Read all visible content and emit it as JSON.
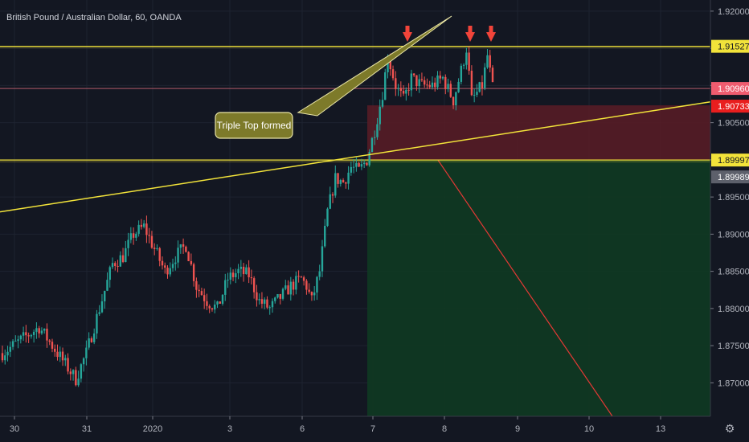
{
  "header": {
    "title": "British Pound / Australian Dollar, 60, OANDA"
  },
  "annotation": {
    "text": "Triple Top formed"
  },
  "chart_data": {
    "type": "candlestick",
    "title": "British Pound / Australian Dollar, 60, OANDA",
    "xlabel": "",
    "ylabel": "",
    "ylim": [
      1.8655,
      1.9215
    ],
    "y_ticks": [
      "1.92000",
      "1.91500",
      "1.91000",
      "1.90500",
      "1.90000",
      "1.89500",
      "1.89000",
      "1.88500",
      "1.88000",
      "1.87500",
      "1.87000"
    ],
    "x_ticks": [
      "30",
      "31",
      "2020",
      "3",
      "6",
      "7",
      "8",
      "9",
      "10",
      "13"
    ],
    "price_labels": [
      {
        "value": "1.91527",
        "style": "yellow"
      },
      {
        "value": "1.90960",
        "style": "pink"
      },
      {
        "value": "22:48",
        "style": "dark"
      },
      {
        "value": "1.90733",
        "style": "red"
      },
      {
        "value": "1.89997",
        "style": "yellow"
      },
      {
        "value": "1.89989",
        "style": "gray"
      }
    ],
    "horizontal_levels": [
      {
        "name": "resistance",
        "value": 1.91527,
        "color": "#f2e33a"
      },
      {
        "name": "neckline",
        "value": 1.89997,
        "color": "#f2e33a"
      },
      {
        "name": "last-price",
        "value": 1.9096,
        "color": "#d96a7a"
      }
    ],
    "trendline": {
      "color": "#f2e33a",
      "from": 1.893,
      "to": 1.9078
    },
    "short_position": {
      "entry": 1.89997,
      "stop": 1.90733,
      "target_below": 1.8655
    },
    "top_markers": 3,
    "colors": {
      "up": "#26a69a",
      "down": "#ef5350",
      "background": "#131722",
      "grid": "#1e2330"
    },
    "candle_path": [
      [
        0,
        1.874
      ],
      [
        8,
        1.876
      ],
      [
        14,
        1.8775
      ],
      [
        20,
        1.8745
      ],
      [
        24,
        1.8725
      ],
      [
        28,
        1.8705
      ],
      [
        32,
        1.874
      ],
      [
        37,
        1.88
      ],
      [
        42,
        1.886
      ],
      [
        46,
        1.887
      ],
      [
        50,
        1.89
      ],
      [
        54,
        1.891
      ],
      [
        58,
        1.888
      ],
      [
        62,
        1.885
      ],
      [
        66,
        1.887
      ],
      [
        70,
        1.8885
      ],
      [
        74,
        1.883
      ],
      [
        78,
        1.881
      ],
      [
        82,
        1.88
      ],
      [
        86,
        1.884
      ],
      [
        90,
        1.885
      ],
      [
        94,
        1.8845
      ],
      [
        98,
        1.881
      ],
      [
        102,
        1.88
      ],
      [
        106,
        1.8815
      ],
      [
        110,
        1.883
      ],
      [
        114,
        1.884
      ],
      [
        116,
        1.883
      ],
      [
        118,
        1.881
      ],
      [
        121,
        1.885
      ],
      [
        124,
        1.893
      ],
      [
        127,
        1.8975
      ],
      [
        130,
        1.897
      ],
      [
        133,
        1.899
      ],
      [
        136,
        1.8985
      ],
      [
        139,
        1.9
      ],
      [
        142,
        1.904
      ],
      [
        145,
        1.909
      ],
      [
        147,
        1.914
      ],
      [
        150,
        1.91
      ],
      [
        153,
        1.908
      ],
      [
        156,
        1.911
      ],
      [
        160,
        1.91
      ],
      [
        164,
        1.91
      ],
      [
        168,
        1.911
      ],
      [
        172,
        1.908
      ],
      [
        175,
        1.912
      ],
      [
        177,
        1.915
      ],
      [
        179,
        1.908
      ],
      [
        181,
        1.909
      ],
      [
        183,
        1.91
      ],
      [
        185,
        1.914
      ],
      [
        187,
        1.9096
      ]
    ]
  }
}
